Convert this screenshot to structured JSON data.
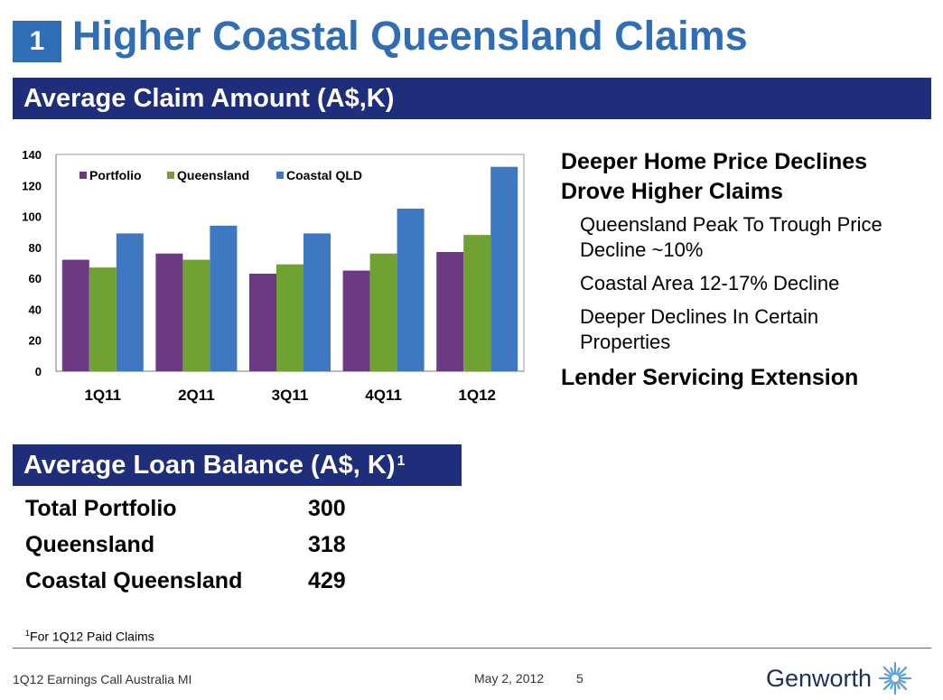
{
  "slide": {
    "number": "1",
    "title": "Higher Coastal Queensland Claims"
  },
  "chart_section": {
    "header": "Average Claim Amount (A$,K)"
  },
  "chart_data": {
    "type": "bar",
    "title": "Average Claim Amount (A$,K)",
    "categories": [
      "1Q11",
      "2Q11",
      "3Q11",
      "4Q11",
      "1Q12"
    ],
    "series": [
      {
        "name": "Portfolio",
        "values": [
          72,
          76,
          63,
          65,
          77
        ],
        "color": "#6b3a82"
      },
      {
        "name": "Queensland",
        "values": [
          67,
          72,
          69,
          76,
          88
        ],
        "color": "#6fa233"
      },
      {
        "name": "Coastal QLD",
        "values": [
          89,
          94,
          89,
          105,
          132
        ],
        "color": "#3d78c0"
      }
    ],
    "yticks": [
      "0",
      "20",
      "40",
      "60",
      "80",
      "100",
      "120",
      "140"
    ],
    "ylim": [
      0,
      140
    ],
    "xlabel": "",
    "ylabel": "",
    "legend": "top"
  },
  "bullets": {
    "main1_line1": "Deeper Home Price Declines",
    "main1_line2": "Drove Higher Claims",
    "sub1_line1": "Queensland Peak To Trough Price",
    "sub1_line2": "Decline ~10%",
    "sub2": "Coastal Area 12-17% Decline",
    "sub3_line1": "Deeper Declines In Certain",
    "sub3_line2": "Properties",
    "main2": "Lender Servicing Extension"
  },
  "loan_section": {
    "header": "Average Loan Balance (A$, K)",
    "header_sup": "1",
    "rows": [
      {
        "label": "Total Portfolio",
        "value": "300"
      },
      {
        "label": "Queensland",
        "value": "318"
      },
      {
        "label": "Coastal Queensland",
        "value": "429"
      }
    ]
  },
  "footnote": {
    "marker": "1",
    "text": "For 1Q12 Paid Claims"
  },
  "footer": {
    "left": "1Q12 Earnings Call Australia MI",
    "date": "May 2, 2012",
    "page": "5",
    "logo_text": "Genworth",
    "logo_color": "#5a9fd4"
  }
}
